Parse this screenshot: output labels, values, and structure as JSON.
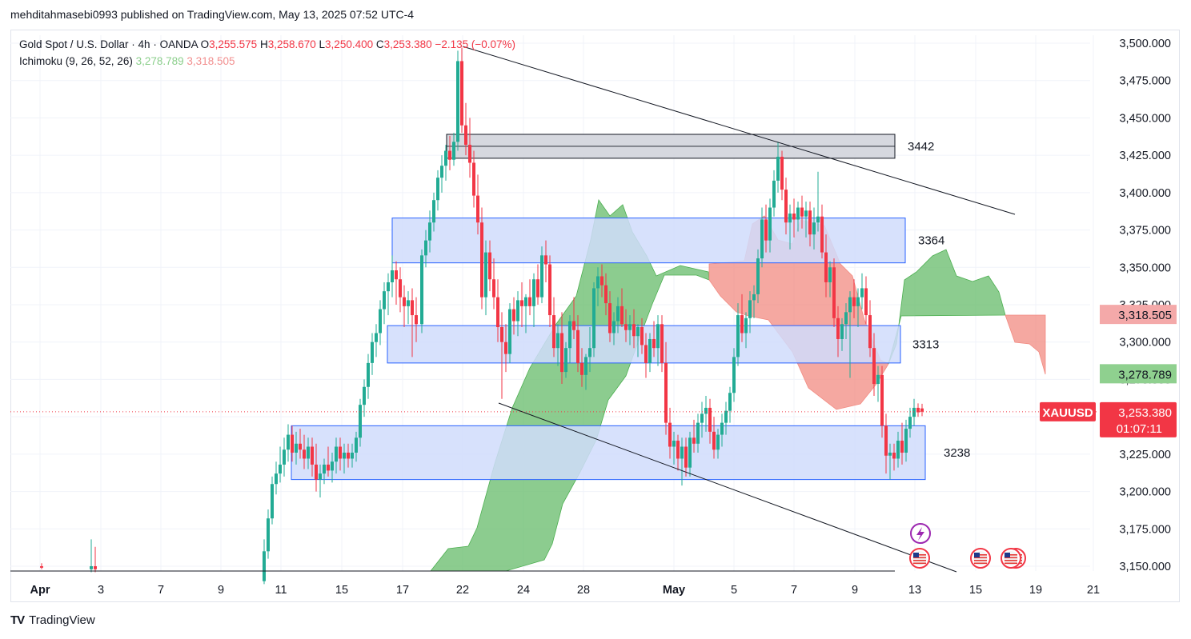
{
  "header": {
    "published_by": "mehditahmasebi0993 published on TradingView.com, May 13, 2025 07:52 UTC-4"
  },
  "legend": {
    "symbol_desc": "Gold Spot / U.S. Dollar · 4h · OANDA",
    "o_label": "O",
    "o_value": "3,255.575",
    "h_label": "H",
    "h_value": "3,258.670",
    "l_label": "L",
    "l_value": "3,250.400",
    "c_label": "C",
    "c_value": "3,253.380",
    "change": "−2.135 (−0.07%)",
    "indicator_name": "Ichimoku (9, 26, 52, 26)",
    "indicator_v1": "3,278.789",
    "indicator_v2": "3,318.505"
  },
  "footer": {
    "brand": "TradingView",
    "logo_text": "TV"
  },
  "colors": {
    "up": "#22ab94",
    "down": "#f23645",
    "grid": "#f0f3fa",
    "zone_fill": "#d0dcfb",
    "zone_stroke": "#2962ff",
    "cloud_green": "#6fbf73",
    "cloud_red": "#f28b82",
    "top_zone_fill": "#d1d4dc"
  },
  "chart_data": {
    "type": "candlestick",
    "symbol": "XAUUSD",
    "timeframe": "4h",
    "ylim": [
      3140,
      3510
    ],
    "y_ticks": [
      "3,500.000",
      "3,475.000",
      "3,450.000",
      "3,425.000",
      "3,400.000",
      "3,375.000",
      "3,350.000",
      "3,325.000",
      "3,300.000",
      "3,275.000",
      "3,250.000",
      "3,225.000",
      "3,200.000",
      "3,175.000",
      "3,150.000"
    ],
    "x_ticks": [
      "Apr",
      "3",
      "7",
      "9",
      "11",
      "15",
      "17",
      "22",
      "24",
      "28",
      "May",
      "5",
      "7",
      "9",
      "13",
      "15",
      "19",
      "21"
    ],
    "price_labels": [
      {
        "name": "Senkou B",
        "value": "3,318.505"
      },
      {
        "name": "Senkou A",
        "value": "3,278.789"
      },
      {
        "name": "XAUUSD",
        "value": "3,253.380",
        "countdown": "01:07:11"
      }
    ],
    "zones": [
      {
        "label": "3442",
        "low": 3423,
        "high": 3439
      },
      {
        "label": "3364",
        "low": 3353,
        "high": 3383
      },
      {
        "label": "3313",
        "low": 3286,
        "high": 3311
      },
      {
        "label": "3238",
        "low": 3208,
        "high": 3244
      }
    ],
    "trendlines": [
      {
        "from": [
          22,
          3498
        ],
        "to": [
          19.5,
          3392
        ]
      },
      {
        "from": [
          23.5,
          3260
        ],
        "to": [
          14.5,
          3144
        ]
      }
    ]
  }
}
